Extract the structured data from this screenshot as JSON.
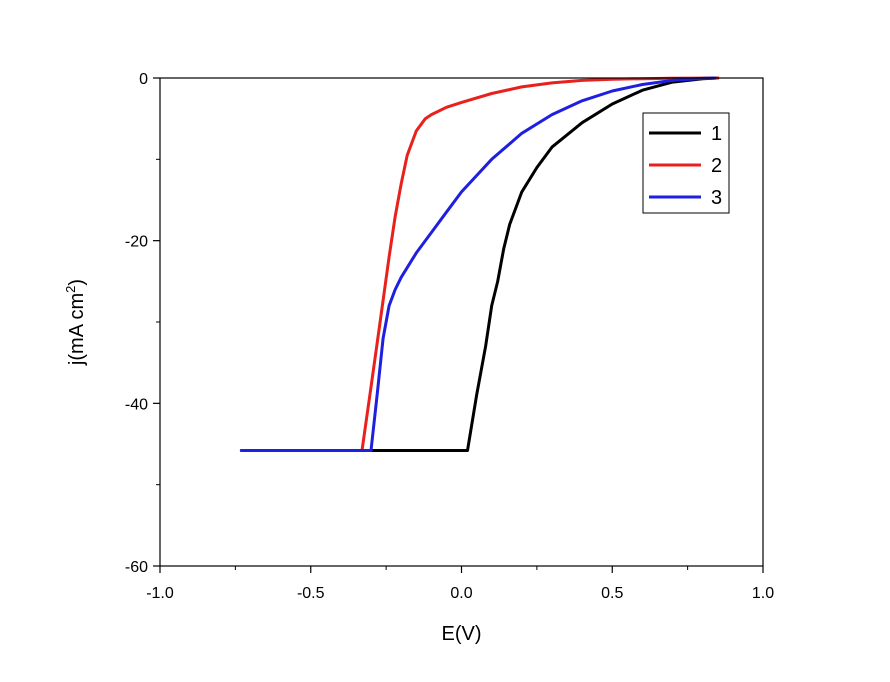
{
  "chart_data": {
    "type": "line",
    "title": "",
    "xlabel": "E(V)",
    "ylabel": "j(mA cm",
    "ylabel_sup": "2",
    "ylabel_end": ")",
    "xlim": [
      -1.0,
      1.0
    ],
    "ylim": [
      -60,
      0
    ],
    "xticks": [
      -1.0,
      -0.5,
      0.0,
      0.5,
      1.0
    ],
    "xtick_labels": [
      "-1.0",
      "-0.5",
      "0.0",
      "0.5",
      "1.0"
    ],
    "yticks": [
      0,
      -20,
      -40,
      -60
    ],
    "ytick_labels": [
      "0",
      "-20",
      "-40",
      "-60"
    ],
    "grid": false,
    "legend_position": "top-right",
    "series": [
      {
        "name": "1",
        "color": "#000000",
        "x": [
          -0.73,
          0.02,
          0.05,
          0.08,
          0.1,
          0.12,
          0.14,
          0.16,
          0.2,
          0.25,
          0.3,
          0.4,
          0.5,
          0.6,
          0.7,
          0.8,
          0.85
        ],
        "y": [
          -45.8,
          -45.8,
          -39.0,
          -33.0,
          -28.0,
          -25.0,
          -21.0,
          -18.0,
          -14.0,
          -11.0,
          -8.5,
          -5.5,
          -3.2,
          -1.5,
          -0.5,
          -0.1,
          0.0
        ]
      },
      {
        "name": "2",
        "color": "#e8211d",
        "x": [
          -0.73,
          -0.33,
          -0.3,
          -0.27,
          -0.24,
          -0.22,
          -0.2,
          -0.18,
          -0.15,
          -0.12,
          -0.1,
          -0.05,
          0.0,
          0.1,
          0.2,
          0.3,
          0.4,
          0.5,
          0.6,
          0.7,
          0.8,
          0.85
        ],
        "y": [
          -45.8,
          -45.8,
          -38.0,
          -30.0,
          -22.0,
          -17.0,
          -13.0,
          -9.5,
          -6.5,
          -5.0,
          -4.5,
          -3.6,
          -3.0,
          -1.9,
          -1.1,
          -0.6,
          -0.3,
          -0.15,
          -0.08,
          -0.03,
          -0.01,
          0.0
        ]
      },
      {
        "name": "3",
        "color": "#1f1fe0",
        "x": [
          -0.73,
          -0.3,
          -0.28,
          -0.26,
          -0.24,
          -0.22,
          -0.2,
          -0.15,
          -0.1,
          -0.05,
          0.0,
          0.1,
          0.2,
          0.3,
          0.4,
          0.5,
          0.6,
          0.7,
          0.8,
          0.84
        ],
        "y": [
          -45.8,
          -45.8,
          -39.0,
          -32.0,
          -28.0,
          -26.0,
          -24.5,
          -21.5,
          -19.0,
          -16.5,
          -14.0,
          -10.0,
          -6.8,
          -4.5,
          -2.8,
          -1.6,
          -0.8,
          -0.3,
          -0.05,
          0.0
        ]
      }
    ]
  }
}
